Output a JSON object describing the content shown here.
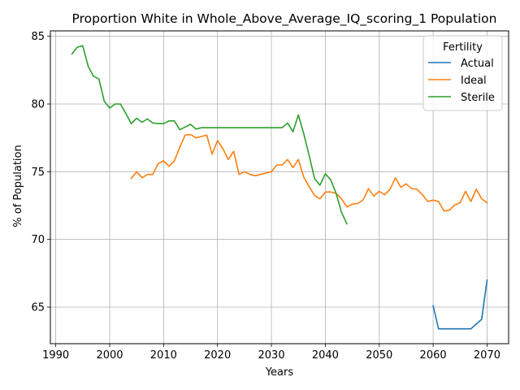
{
  "chart_data": {
    "type": "line",
    "title": "Proportion White in Whole_Above_Average_IQ_scoring_1 Population",
    "xlabel": "Years",
    "ylabel": "% of Population",
    "xlim": [
      1989,
      2074
    ],
    "ylim": [
      62.3,
      85.4
    ],
    "x_ticks": [
      1990,
      2000,
      2010,
      2020,
      2030,
      2040,
      2050,
      2060,
      2070
    ],
    "y_ticks": [
      65,
      70,
      75,
      80,
      85
    ],
    "grid": true,
    "legend": {
      "title": "Fertility",
      "placement": "top-right"
    },
    "series": [
      {
        "name": "Actual",
        "color": "#1f77b4",
        "points": [
          [
            2060,
            65.1
          ],
          [
            2061,
            63.4
          ],
          [
            2067,
            63.4
          ],
          [
            2069,
            64.1
          ],
          [
            2070,
            67.0
          ]
        ]
      },
      {
        "name": "Ideal",
        "color": "#ff7f0e",
        "points": [
          [
            2004,
            74.5
          ],
          [
            2005,
            75.0
          ],
          [
            2006,
            74.55
          ],
          [
            2007,
            74.8
          ],
          [
            2008,
            74.8
          ],
          [
            2009,
            75.6
          ],
          [
            2010,
            75.8
          ],
          [
            2011,
            75.4
          ],
          [
            2012,
            75.8
          ],
          [
            2013,
            76.8
          ],
          [
            2014,
            77.7
          ],
          [
            2015,
            77.75
          ],
          [
            2016,
            77.5
          ],
          [
            2017,
            77.6
          ],
          [
            2018,
            77.7
          ],
          [
            2019,
            76.3
          ],
          [
            2020,
            77.3
          ],
          [
            2021,
            76.7
          ],
          [
            2022,
            75.9
          ],
          [
            2023,
            76.5
          ],
          [
            2024,
            74.8
          ],
          [
            2025,
            75.0
          ],
          [
            2026,
            74.8
          ],
          [
            2027,
            74.7
          ],
          [
            2028,
            74.8
          ],
          [
            2029,
            74.9
          ],
          [
            2030,
            75.0
          ],
          [
            2031,
            75.5
          ],
          [
            2032,
            75.5
          ],
          [
            2033,
            75.9
          ],
          [
            2034,
            75.3
          ],
          [
            2035,
            75.9
          ],
          [
            2036,
            74.6
          ],
          [
            2037,
            73.9
          ],
          [
            2038,
            73.25
          ],
          [
            2039,
            73.0
          ],
          [
            2040,
            73.5
          ],
          [
            2041,
            73.5
          ],
          [
            2042,
            73.4
          ],
          [
            2043,
            73.0
          ],
          [
            2044,
            72.4
          ],
          [
            2045,
            72.6
          ],
          [
            2046,
            72.65
          ],
          [
            2047,
            72.9
          ],
          [
            2048,
            73.75
          ],
          [
            2049,
            73.2
          ],
          [
            2050,
            73.55
          ],
          [
            2051,
            73.3
          ],
          [
            2052,
            73.7
          ],
          [
            2053,
            74.55
          ],
          [
            2054,
            73.85
          ],
          [
            2055,
            74.1
          ],
          [
            2056,
            73.75
          ],
          [
            2057,
            73.7
          ],
          [
            2058,
            73.3
          ],
          [
            2059,
            72.8
          ],
          [
            2060,
            72.9
          ],
          [
            2061,
            72.8
          ],
          [
            2062,
            72.1
          ],
          [
            2063,
            72.15
          ],
          [
            2064,
            72.55
          ],
          [
            2065,
            72.7
          ],
          [
            2066,
            73.55
          ],
          [
            2067,
            72.8
          ],
          [
            2068,
            73.7
          ],
          [
            2069,
            73.0
          ],
          [
            2070,
            72.7
          ]
        ]
      },
      {
        "name": "Sterile",
        "color": "#2ca02c",
        "points": [
          [
            1993,
            83.7
          ],
          [
            1994,
            84.2
          ],
          [
            1995,
            84.3
          ],
          [
            1996,
            82.8
          ],
          [
            1997,
            82.05
          ],
          [
            1998,
            81.85
          ],
          [
            1999,
            80.2
          ],
          [
            2000,
            79.7
          ],
          [
            2001,
            80.0
          ],
          [
            2002,
            80.0
          ],
          [
            2003,
            79.3
          ],
          [
            2004,
            78.55
          ],
          [
            2005,
            78.95
          ],
          [
            2006,
            78.65
          ],
          [
            2007,
            78.9
          ],
          [
            2008,
            78.6
          ],
          [
            2009,
            78.55
          ],
          [
            2010,
            78.55
          ],
          [
            2011,
            78.75
          ],
          [
            2012,
            78.75
          ],
          [
            2013,
            78.1
          ],
          [
            2014,
            78.3
          ],
          [
            2015,
            78.5
          ],
          [
            2016,
            78.15
          ],
          [
            2017,
            78.25
          ],
          [
            2018,
            78.25
          ],
          [
            2020,
            78.25
          ],
          [
            2025,
            78.25
          ],
          [
            2030,
            78.25
          ],
          [
            2032,
            78.25
          ],
          [
            2033,
            78.6
          ],
          [
            2034,
            77.95
          ],
          [
            2035,
            79.2
          ],
          [
            2036,
            77.8
          ],
          [
            2037,
            76.2
          ],
          [
            2038,
            74.5
          ],
          [
            2039,
            74.0
          ],
          [
            2040,
            74.85
          ],
          [
            2041,
            74.4
          ],
          [
            2042,
            73.4
          ],
          [
            2043,
            72.0
          ],
          [
            2044,
            71.15
          ]
        ]
      }
    ]
  }
}
